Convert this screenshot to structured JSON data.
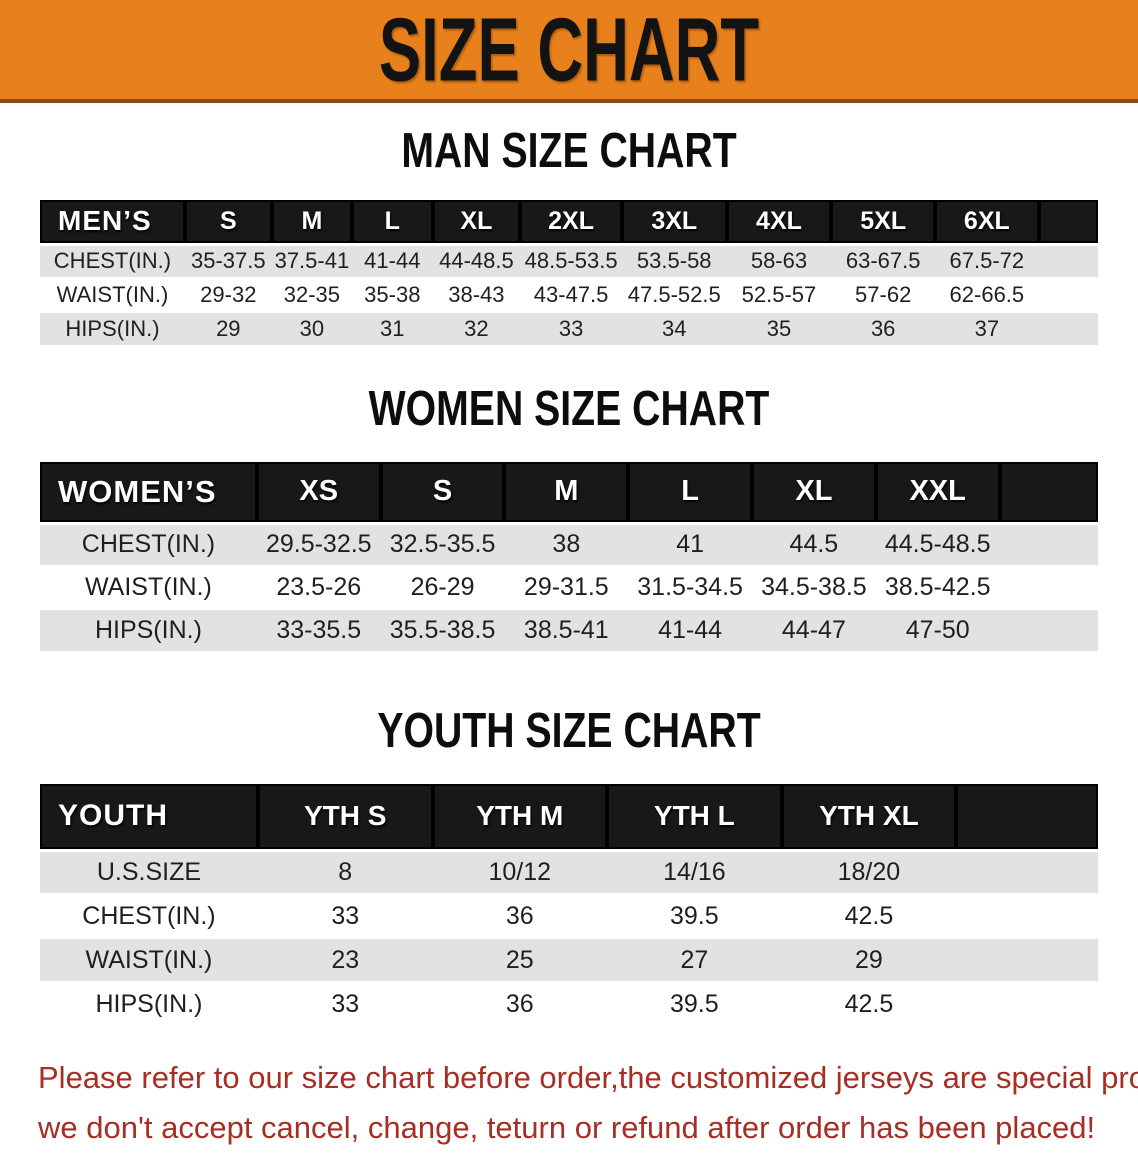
{
  "banner": {
    "title": "SIZE CHART"
  },
  "colors": {
    "banner_bg": "#e8811c",
    "banner_text": "#131313",
    "header_bg": "#181818",
    "row_alt": "#e2e2e2",
    "disclaimer": "#a62e24"
  },
  "sections": [
    {
      "id": "men",
      "title": "MAN SIZE CHART",
      "header_label": "MEN’S",
      "sizes": [
        "S",
        "M",
        "L",
        "XL",
        "2XL",
        "3XL",
        "4XL",
        "5XL",
        "6XL"
      ],
      "rows": [
        {
          "label": "CHEST(IN.)",
          "values": [
            "35-37.5",
            "37.5-41",
            "41-44",
            "44-48.5",
            "48.5-53.5",
            "53.5-58",
            "58-63",
            "63-67.5",
            "67.5-72"
          ]
        },
        {
          "label": "WAIST(IN.)",
          "values": [
            "29-32",
            "32-35",
            "35-38",
            "38-43",
            "43-47.5",
            "47.5-52.5",
            "52.5-57",
            "57-62",
            "62-66.5"
          ]
        },
        {
          "label": "HIPS(IN.)",
          "values": [
            "29",
            "30",
            "31",
            "32",
            "33",
            "34",
            "35",
            "36",
            "37"
          ]
        }
      ]
    },
    {
      "id": "women",
      "title": "WOMEN SIZE CHART",
      "header_label": "WOMEN’S",
      "sizes": [
        "XS",
        "S",
        "M",
        "L",
        "XL",
        "XXL"
      ],
      "rows": [
        {
          "label": "CHEST(IN.)",
          "values": [
            "29.5-32.5",
            "32.5-35.5",
            "38",
            "41",
            "44.5",
            "44.5-48.5"
          ]
        },
        {
          "label": "WAIST(IN.)",
          "values": [
            "23.5-26",
            "26-29",
            "29-31.5",
            "31.5-34.5",
            "34.5-38.5",
            "38.5-42.5"
          ]
        },
        {
          "label": "HIPS(IN.)",
          "values": [
            "33-35.5",
            "35.5-38.5",
            "38.5-41",
            "41-44",
            "44-47",
            "47-50"
          ]
        }
      ]
    },
    {
      "id": "youth",
      "title": "YOUTH SIZE CHART",
      "header_label": "YOUTH",
      "sizes": [
        "YTH S",
        "YTH M",
        "YTH L",
        "YTH XL"
      ],
      "rows": [
        {
          "label": "U.S.SIZE",
          "values": [
            "8",
            "10/12",
            "14/16",
            "18/20"
          ]
        },
        {
          "label": "CHEST(IN.)",
          "values": [
            "33",
            "36",
            "39.5",
            "42.5"
          ]
        },
        {
          "label": "WAIST(IN.)",
          "values": [
            "23",
            "25",
            "27",
            "29"
          ]
        },
        {
          "label": "HIPS(IN.)",
          "values": [
            "33",
            "36",
            "39.5",
            "42.5"
          ]
        }
      ]
    }
  ],
  "disclaimer": {
    "line1": "Please refer to our size chart before order,the customized jerseys are special products,",
    "line2": "we don't accept cancel, change, teturn or refund after order has been placed!"
  }
}
